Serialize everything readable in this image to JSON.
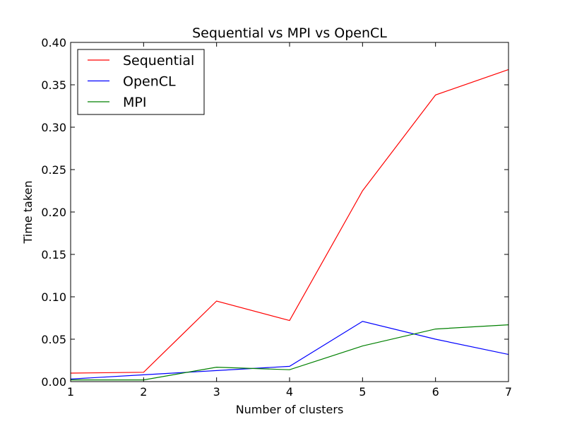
{
  "chart_data": {
    "type": "line",
    "title": "Sequential vs MPI vs OpenCL",
    "xlabel": "Number of clusters",
    "ylabel": "Time taken",
    "x": [
      1,
      2,
      3,
      4,
      5,
      6,
      7
    ],
    "xlim": [
      1,
      7
    ],
    "ylim": [
      0,
      0.4
    ],
    "xticks": [
      1,
      2,
      3,
      4,
      5,
      6,
      7
    ],
    "xtick_labels": [
      "1",
      "2",
      "3",
      "4",
      "5",
      "6",
      "7"
    ],
    "yticks": [
      0,
      0.05,
      0.1,
      0.15,
      0.2,
      0.25,
      0.3,
      0.35,
      0.4
    ],
    "ytick_labels": [
      "0.00",
      "0.05",
      "0.10",
      "0.15",
      "0.20",
      "0.25",
      "0.30",
      "0.35",
      "0.40"
    ],
    "grid": false,
    "legend_position": "top-left",
    "series": [
      {
        "name": "Sequential",
        "color": "#ff0000",
        "values": [
          0.01,
          0.011,
          0.095,
          0.072,
          0.225,
          0.338,
          0.368
        ]
      },
      {
        "name": "OpenCL",
        "color": "#0000ff",
        "values": [
          0.003,
          0.008,
          0.013,
          0.018,
          0.071,
          0.05,
          0.032
        ]
      },
      {
        "name": "MPI",
        "color": "#008000",
        "values": [
          0.002,
          0.002,
          0.017,
          0.014,
          0.042,
          0.062,
          0.067
        ]
      }
    ]
  }
}
